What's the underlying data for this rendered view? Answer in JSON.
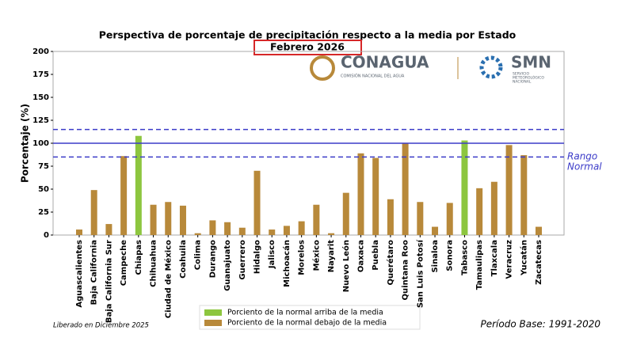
{
  "chart_data": {
    "type": "bar",
    "title": "Perspectiva de porcentaje de precipitación respecto a la media por Estado",
    "subtitle": "Febrero 2026",
    "y_label": "Porcentaje (%)",
    "categories": [
      "Aguascalientes",
      "Baja California",
      "Baja California Sur",
      "Campeche",
      "Chiapas",
      "Chihuahua",
      "Ciudad de México",
      "Coahuila",
      "Colima",
      "Durango",
      "Guanajuato",
      "Guerrero",
      "Hidalgo",
      "Jalisco",
      "Michoacán",
      "Morelos",
      "México",
      "Nayarit",
      "Nuevo León",
      "Oaxaca",
      "Puebla",
      "Querétaro",
      "Quintana Roo",
      "San Luis Potosí",
      "Sinaloa",
      "Sonora",
      "Tabasco",
      "Tamaulipas",
      "Tlaxcala",
      "Veracruz",
      "Yucatán",
      "Zacatecas"
    ],
    "series": [
      {
        "name": "Porciento de la normal arriba de la media",
        "color": "#8dc63f",
        "values": [
          null,
          null,
          null,
          null,
          108,
          null,
          null,
          null,
          null,
          null,
          null,
          null,
          null,
          null,
          null,
          null,
          null,
          null,
          null,
          null,
          null,
          null,
          null,
          null,
          null,
          null,
          103,
          null,
          null,
          null,
          null,
          null
        ]
      },
      {
        "name": "Porciento de la normal debajo de la media",
        "color": "#b8893a",
        "values": [
          6,
          49,
          12,
          86,
          null,
          33,
          36,
          32,
          2,
          16,
          14,
          8,
          70,
          6,
          10,
          15,
          33,
          2,
          46,
          89,
          84,
          39,
          100,
          36,
          9,
          35,
          null,
          51,
          58,
          98,
          87,
          9
        ]
      }
    ],
    "ylim": [
      0,
      200
    ],
    "yticks": [
      0,
      25,
      50,
      75,
      100,
      125,
      150,
      175,
      200
    ],
    "grid": false,
    "reference_lines": [
      {
        "value": 115,
        "style": "dashed",
        "color": "#3b3bc8"
      },
      {
        "value": 100,
        "style": "solid",
        "color": "#3b3bc8"
      },
      {
        "value": 85,
        "style": "dashed",
        "color": "#3b3bc8"
      }
    ],
    "annotation": [
      "Rango",
      "Normal"
    ],
    "legend": "bottom",
    "logos": {
      "conagua": "CONAGUA",
      "conagua_sub": "COMISIÓN NACIONAL DEL AGUA",
      "smn": "SMN",
      "smn_sub": [
        "SERVICIO",
        "METEOROLÓGICO",
        "NACIONAL"
      ]
    },
    "footer_left": "Liberado en Diciembre 2025",
    "footer_right": "Período Base: 1991-2020"
  }
}
